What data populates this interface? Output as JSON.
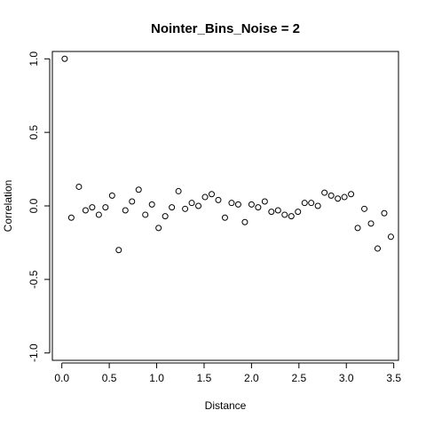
{
  "chart_data": {
    "type": "scatter",
    "title": "Nointer_Bins_Noise = 2",
    "xlabel": "Distance",
    "ylabel": "Correlation",
    "xlim": [
      -0.1,
      3.55
    ],
    "ylim": [
      -1.05,
      1.05
    ],
    "xticks": [
      0.0,
      0.5,
      1.0,
      1.5,
      2.0,
      2.5,
      3.0,
      3.5
    ],
    "xtick_labels": [
      "0.0",
      "0.5",
      "1.0",
      "1.5",
      "2.0",
      "2.5",
      "3.0",
      "3.5"
    ],
    "yticks": [
      -1.0,
      -0.5,
      0.0,
      0.5,
      1.0
    ],
    "ytick_labels": [
      "-1.0",
      "-0.5",
      "0.0",
      "0.5",
      "1.0"
    ],
    "grid": false,
    "marker": "open-circle",
    "x": [
      0.03,
      0.1,
      0.18,
      0.25,
      0.32,
      0.39,
      0.46,
      0.53,
      0.6,
      0.67,
      0.74,
      0.81,
      0.88,
      0.95,
      1.02,
      1.09,
      1.16,
      1.23,
      1.3,
      1.37,
      1.44,
      1.51,
      1.58,
      1.65,
      1.72,
      1.79,
      1.86,
      1.93,
      2.0,
      2.07,
      2.14,
      2.21,
      2.28,
      2.35,
      2.42,
      2.49,
      2.56,
      2.63,
      2.7,
      2.77,
      2.84,
      2.91,
      2.98,
      3.05,
      3.12,
      3.19,
      3.26,
      3.33,
      3.4,
      3.47
    ],
    "y": [
      1.0,
      -0.08,
      0.13,
      -0.03,
      -0.01,
      -0.06,
      -0.01,
      0.07,
      -0.3,
      -0.03,
      0.03,
      0.11,
      -0.06,
      0.01,
      -0.15,
      -0.07,
      -0.01,
      0.1,
      -0.02,
      0.02,
      0.0,
      0.06,
      0.08,
      0.04,
      -0.08,
      0.02,
      0.01,
      -0.11,
      0.01,
      -0.01,
      0.03,
      -0.04,
      -0.03,
      -0.06,
      -0.07,
      -0.04,
      0.02,
      0.02,
      0.0,
      0.09,
      0.07,
      0.05,
      0.06,
      0.08,
      -0.15,
      -0.02,
      -0.12,
      -0.29,
      -0.05,
      -0.21
    ]
  }
}
